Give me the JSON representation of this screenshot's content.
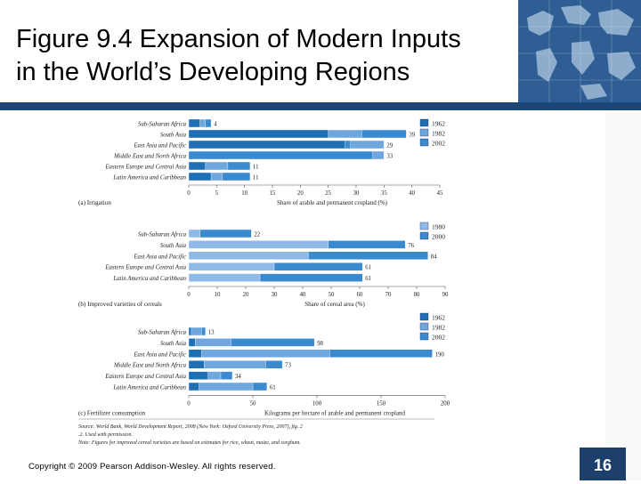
{
  "slide": {
    "title_line1": "Figure 9.4 Expansion of Modern Inputs",
    "title_line2": "in the World’s Developing Regions",
    "copyright": "Copyright © 2009 Pearson Addison-Wesley. All rights reserved.",
    "page_number": "16",
    "colors": {
      "banner": "#2e5e93",
      "rule": "#1d4678",
      "page_box": "#1d3f6b"
    }
  },
  "chart_data": [
    {
      "type": "bar",
      "panel_label": "(a) Irrigation",
      "xlabel": "Share of arable and permanent cropland (%)",
      "xlim": [
        0,
        45
      ],
      "ticks": [
        0,
        5,
        10,
        15,
        20,
        25,
        30,
        35,
        40,
        45
      ],
      "categories": [
        "Sub-Saharan Africa",
        "South Asia",
        "East Asia and Pacific",
        "Middle East and North Africa",
        "Eastern Europe and Central Asia",
        "Latin America and Caribbean"
      ],
      "series": [
        {
          "name": "1962",
          "color": "#1f6fb5",
          "values": [
            2,
            25,
            28,
            33,
            3,
            4
          ]
        },
        {
          "name": "1982",
          "color": "#6fa6dd",
          "values": [
            3,
            31,
            35,
            35,
            7,
            6
          ]
        },
        {
          "name": "2002",
          "color": "#3a8ad0",
          "values": [
            4,
            39,
            29,
            33,
            11,
            11
          ]
        }
      ],
      "end_labels": [
        "4",
        "39",
        "29",
        "33",
        "11",
        "11"
      ]
    },
    {
      "type": "bar",
      "panel_label": "(b) Improved varieties of cereals",
      "xlabel": "Share of cereal area (%)",
      "xlim": [
        0,
        90
      ],
      "ticks": [
        0,
        10,
        20,
        30,
        40,
        50,
        60,
        70,
        80,
        90
      ],
      "categories": [
        "Sub-Saharan Africa",
        "South Asia",
        "East Asia and Pacific",
        "Eastern Europe and Central Asia",
        "Latin America and Caribbean"
      ],
      "series": [
        {
          "name": "1980",
          "color": "#8fb9e6",
          "values": [
            4,
            49,
            42,
            30,
            25
          ]
        },
        {
          "name": "2000",
          "color": "#3a8ad0",
          "values": [
            22,
            76,
            84,
            61,
            61
          ]
        }
      ],
      "end_labels": [
        "22",
        "76",
        "84",
        "61",
        "61"
      ]
    },
    {
      "type": "bar",
      "panel_label": "(c) Fertilizer consumption",
      "xlabel": "Kilograms per hectare of arable and permanent cropland",
      "xlim": [
        0,
        200
      ],
      "ticks": [
        0,
        50,
        100,
        150,
        200
      ],
      "categories": [
        "Sub-Saharan Africa",
        "South Asia",
        "East Asia and Pacific",
        "Middle East and North Africa",
        "Eastern Europe and Central Asia",
        "Latin America and Caribbean"
      ],
      "series": [
        {
          "name": "1962",
          "color": "#1f6fb5",
          "values": [
            2,
            5,
            10,
            12,
            15,
            8
          ]
        },
        {
          "name": "1982",
          "color": "#6fa6dd",
          "values": [
            10,
            33,
            110,
            60,
            25,
            50
          ]
        },
        {
          "name": "2002",
          "color": "#3a8ad0",
          "values": [
            13,
            98,
            190,
            73,
            34,
            61
          ]
        }
      ],
      "end_labels": [
        "13",
        "98",
        "190",
        "73",
        "34",
        "61"
      ]
    }
  ],
  "source_note": {
    "source": "Source: World Bank, World Development Report, 2008 (New York: Oxford University Press, 2007), fig. 2.2. Used with permission.",
    "note": "Note: Figures for improved cereal varieties are based on estimates for rice, wheat, maize, and sorghum."
  }
}
